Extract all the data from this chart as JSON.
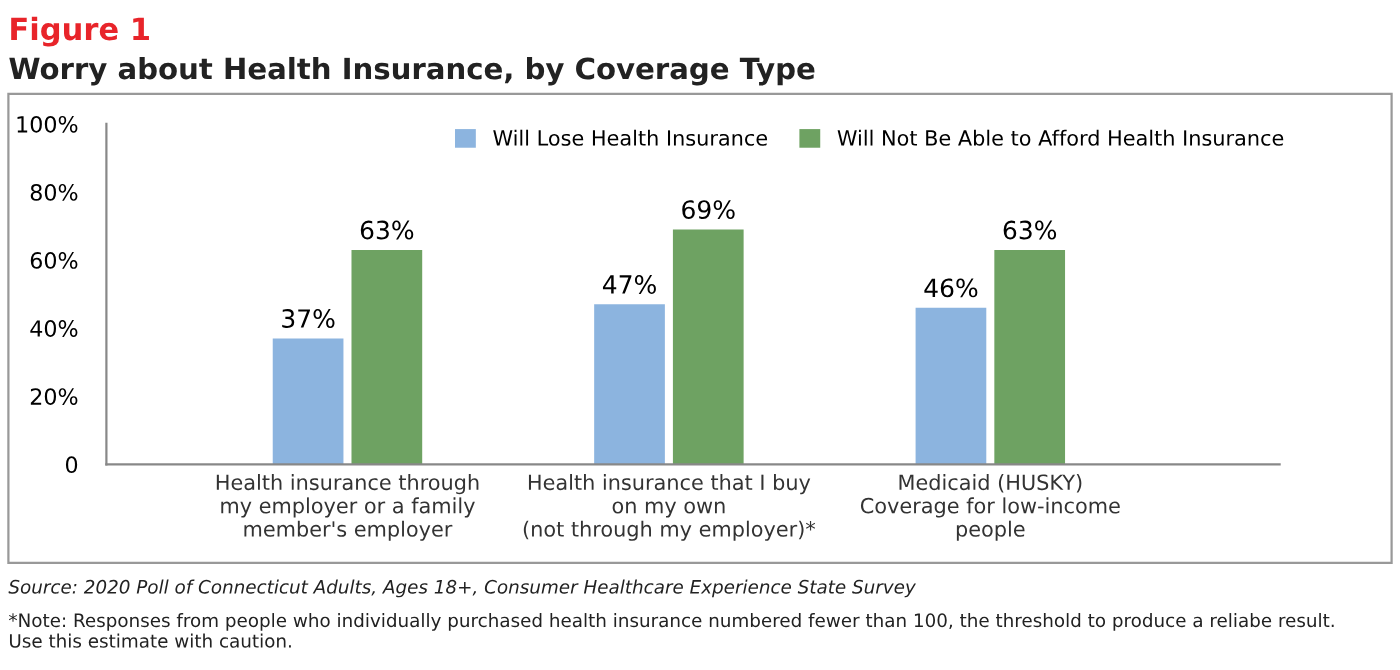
{
  "chart_data": {
    "type": "bar",
    "title": "Figure 1",
    "subtitle": "Worry about Health Insurance, by Coverage Type",
    "categories": [
      "Health insurance through\nmy employer or a family\nmember's employer",
      "Health insurance that I buy\non my own\n(not through my employer)*",
      "Medicaid (HUSKY)\nCoverage for low-income\npeople"
    ],
    "series": [
      {
        "name": "Will Lose Health Insurance",
        "color": "#8cb4df",
        "values": [
          37,
          47,
          46
        ],
        "value_labels": [
          "37%",
          "47%",
          "46%"
        ]
      },
      {
        "name": "Will Not Be Able to Afford Health Insurance",
        "color": "#6ea262",
        "values": [
          63,
          69,
          63
        ],
        "value_labels": [
          "63%",
          "69%",
          "63%"
        ]
      }
    ],
    "ylim": [
      0,
      100
    ],
    "yticks": [
      0,
      {
        "value": 20,
        "label": "20%"
      },
      {
        "value": 40,
        "label": "40%"
      },
      {
        "value": 60,
        "label": "60%"
      },
      {
        "value": 80,
        "label": "80%"
      },
      {
        "value": 100,
        "label": "100%"
      }
    ],
    "grid": false,
    "legend": "top right",
    "annotations": [
      "Source: 2020 Poll of Connecticut Adults, Ages 18+, Consumer Healthcare Experience State Survey",
      "*Note: Responses from people who individually purchased health insurance numbered fewer than 100, the threshold to produce a reliabe result.\nUse this estimate with caution."
    ]
  }
}
